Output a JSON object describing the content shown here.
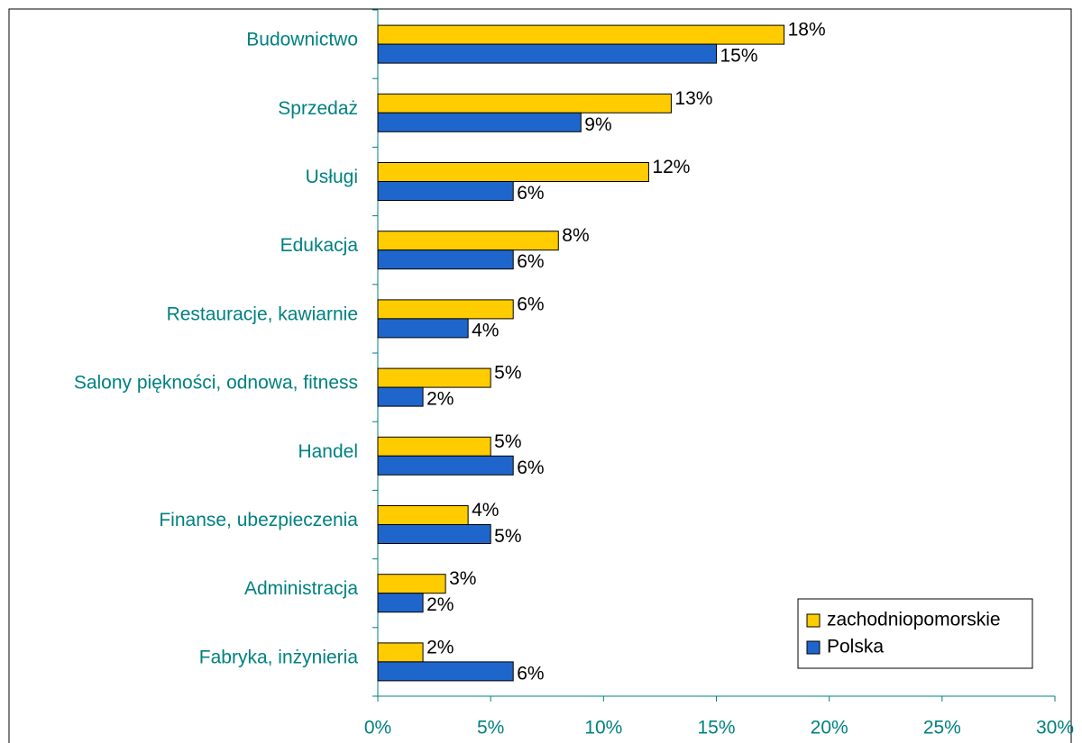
{
  "chart_data": {
    "type": "bar",
    "orientation": "horizontal",
    "categories": [
      "Budownictwo",
      "Sprzedaż",
      "Usługi",
      "Edukacja",
      "Restauracje, kawiarnie",
      "Salony piękności, odnowa, fitness",
      "Handel",
      "Finanse, ubezpieczenia",
      "Administracja",
      "Fabryka, inżynieria"
    ],
    "series": [
      {
        "name": "zachodniopomorskie",
        "color": "#ffcc00",
        "values": [
          18,
          13,
          12,
          8,
          6,
          5,
          5,
          4,
          3,
          2
        ],
        "value_labels": [
          "18%",
          "13%",
          "12%",
          "8%",
          "6%",
          "5%",
          "5%",
          "4%",
          "3%",
          "2%"
        ]
      },
      {
        "name": "Polska",
        "color": "#1f66cc",
        "values": [
          15,
          9,
          6,
          6,
          4,
          2,
          6,
          5,
          2,
          6
        ],
        "value_labels": [
          "15%",
          "9%",
          "6%",
          "6%",
          "4%",
          "2%",
          "6%",
          "5%",
          "2%",
          "6%"
        ]
      }
    ],
    "xlim": [
      0,
      30
    ],
    "xticks": [
      {
        "value": 0,
        "label": "0%"
      },
      {
        "value": 5,
        "label": "5%"
      },
      {
        "value": 10,
        "label": "10%"
      },
      {
        "value": 15,
        "label": "15%"
      },
      {
        "value": 20,
        "label": "20%"
      },
      {
        "value": 25,
        "label": "25%"
      },
      {
        "value": 30,
        "label": "30%"
      }
    ],
    "legend": "bottom-right"
  }
}
